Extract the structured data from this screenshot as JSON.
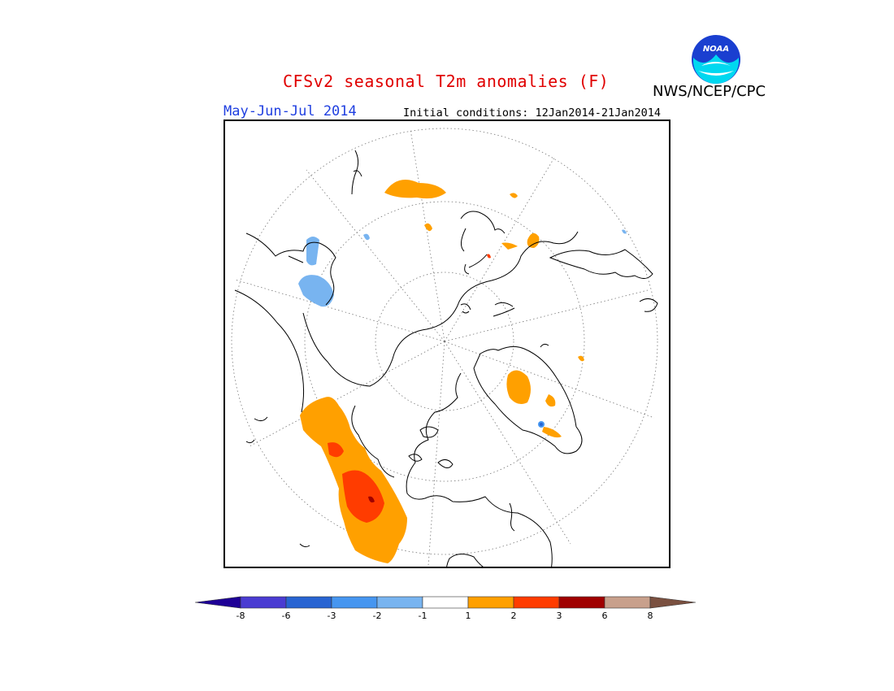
{
  "header": {
    "title": "CFSv2 seasonal T2m anomalies (F)",
    "period": "May-Jun-Jul 2014",
    "initial_conditions": "Initial conditions: 12Jan2014-21Jan2014",
    "agency": "NWS/NCEP/CPC",
    "logo_text": "NOAA",
    "logo_icon": "noaa-logo"
  },
  "colorbar": {
    "labels": [
      "-8",
      "-6",
      "-3",
      "-2",
      "-1",
      "1",
      "2",
      "3",
      "6",
      "8"
    ],
    "colors": [
      "#1e0096",
      "#4a3cd2",
      "#2864d2",
      "#4696f0",
      "#78b4f0",
      "#ffffff",
      "#ffa000",
      "#ff3c00",
      "#a00000",
      "#c8a08c",
      "#7a5040"
    ]
  }
}
